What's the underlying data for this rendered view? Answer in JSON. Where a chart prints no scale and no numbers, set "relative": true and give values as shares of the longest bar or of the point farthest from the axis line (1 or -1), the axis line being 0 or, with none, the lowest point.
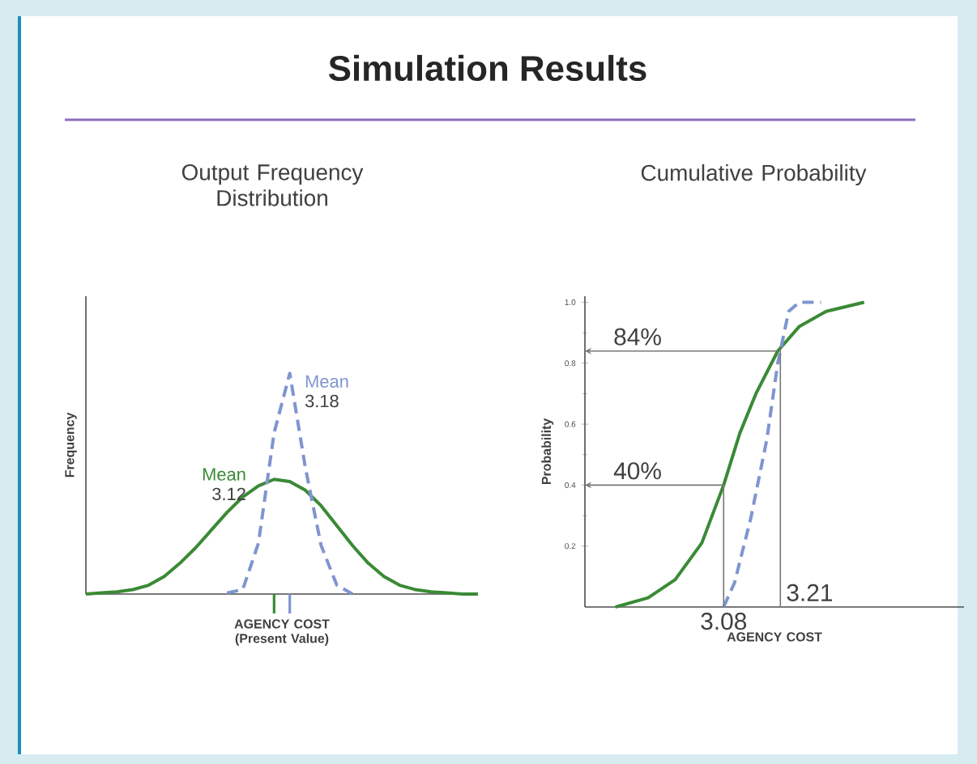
{
  "chart_data": [
    {
      "type": "line",
      "title": "Output Frequency Distribution",
      "xlabel": "AGENCY COST (Present Value)",
      "ylabel": "Frequency",
      "relative": true,
      "tick_labels": false,
      "marker": "none",
      "categories": [
        null,
        null,
        null,
        null,
        null,
        null,
        null,
        null,
        null,
        null,
        null,
        null,
        null,
        null,
        null,
        null,
        null,
        null,
        null,
        null,
        null,
        null,
        null,
        null,
        null,
        null
      ],
      "series": [
        {
          "color": "#3a8a35",
          "line_style": "solid",
          "values": [
            0,
            0.005,
            0.01,
            0.02,
            0.04,
            0.08,
            0.14,
            0.21,
            0.29,
            0.37,
            0.44,
            0.49,
            0.52,
            0.51,
            0.47,
            0.4,
            0.31,
            0.22,
            0.14,
            0.08,
            0.04,
            0.02,
            0.01,
            0.005,
            0,
            0
          ]
        },
        {
          "color": "#7f95d0",
          "line_style": "dashed",
          "values": [
            null,
            null,
            null,
            null,
            null,
            null,
            null,
            null,
            null,
            0.005,
            0.02,
            0.23,
            0.73,
            1.0,
            0.57,
            0.22,
            0.04,
            0,
            null,
            null,
            null,
            null,
            null,
            null,
            null,
            null
          ]
        }
      ],
      "annotations": [
        "Simulation Results",
        "Mean",
        "3.12",
        "Mean",
        "3.18"
      ]
    },
    {
      "type": "line",
      "title": "Cumulative Probability",
      "xlabel": "AGENCY COST",
      "ylabel": "Probability",
      "tick_labels": "y",
      "marker": "none",
      "xlim": [
        2.762,
        3.631
      ],
      "ylim": [
        0,
        1.02
      ],
      "yticks": [
        0.2,
        0.4,
        0.6,
        0.8,
        {
          "value": 1.0,
          "label": "1.0"
        }
      ],
      "series": [
        {
          "color": "#3a8a35",
          "line_style": "solid",
          "x": [
            2.832,
            2.907,
            2.969,
            3.03,
            3.08,
            3.117,
            3.154,
            3.204,
            3.253,
            3.315,
            3.402
          ],
          "values": [
            0,
            0.03,
            0.09,
            0.21,
            0.4,
            0.57,
            0.7,
            0.84,
            0.92,
            0.97,
            1.0
          ]
        },
        {
          "color": "#7f95d0",
          "line_style": "dashed",
          "x": [
            3.08,
            3.105,
            3.142,
            3.179,
            3.204,
            3.229,
            3.253,
            3.303
          ],
          "values": [
            0,
            0.08,
            0.29,
            0.55,
            0.8,
            0.97,
            1.0,
            1.0
          ]
        }
      ],
      "ref_lines": [
        {
          "axis": "y",
          "value": 0.84,
          "label": "84%",
          "color": "#777777"
        },
        {
          "axis": "y",
          "value": 0.4,
          "label": "40%",
          "color": "#777777"
        },
        {
          "axis": "x",
          "value": 3.08,
          "label": "3.08",
          "color": "#777777"
        },
        {
          "axis": "x",
          "value": 3.21,
          "label": "3.21",
          "color": "#777777"
        }
      ]
    }
  ]
}
